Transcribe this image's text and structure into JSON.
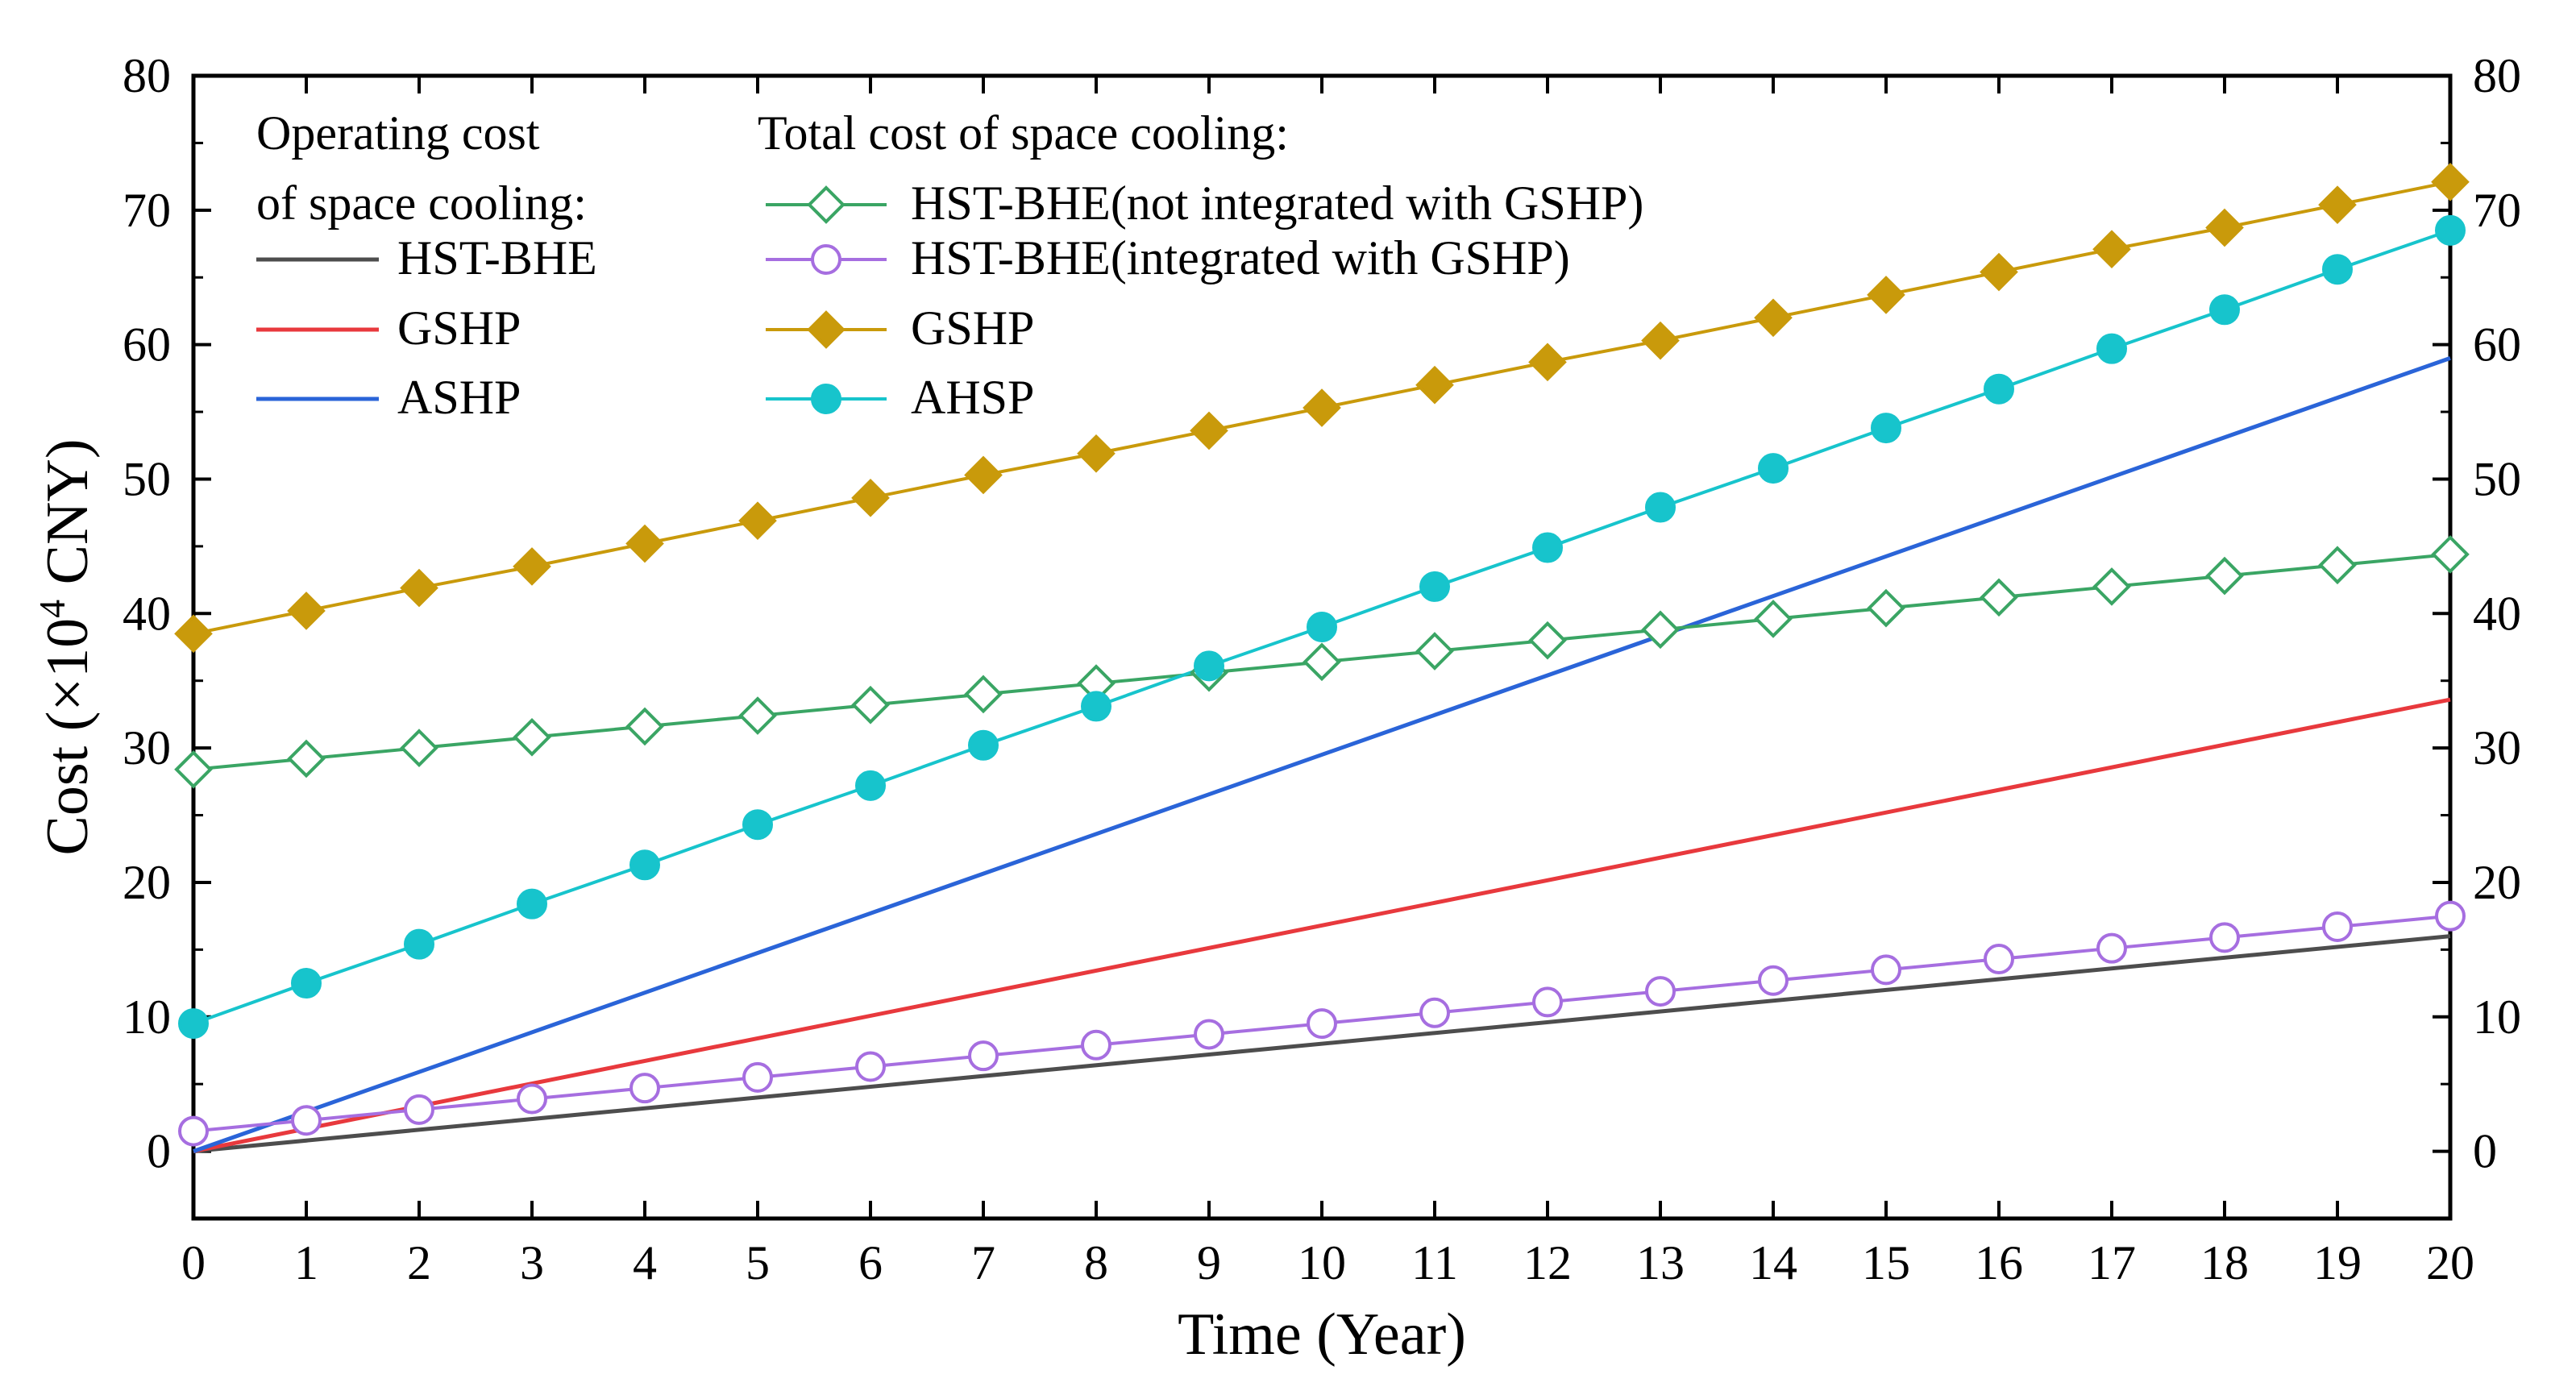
{
  "chart_data": {
    "type": "line",
    "xlabel": "Time (Year)",
    "ylabel_prefix": "Cost (×10",
    "ylabel_exp": "4",
    "ylabel_suffix": " CNY)",
    "xlim": [
      0,
      20
    ],
    "ylim": [
      -5,
      80
    ],
    "xticks": [
      0,
      1,
      2,
      3,
      4,
      5,
      6,
      7,
      8,
      9,
      10,
      11,
      12,
      13,
      14,
      15,
      16,
      17,
      18,
      19,
      20
    ],
    "yticks": [
      0,
      10,
      20,
      30,
      40,
      50,
      60,
      70,
      80
    ],
    "legend": {
      "left_title_line1": "Operating cost",
      "left_title_line2": "of space cooling:",
      "right_title": "Total cost of space cooling:"
    },
    "operating_series": [
      {
        "name": "HST-BHE",
        "color": "#4d4d4d",
        "x": [
          0,
          20
        ],
        "values": [
          0,
          16
        ]
      },
      {
        "name": "GSHP",
        "color": "#e8393d",
        "x": [
          0,
          20
        ],
        "values": [
          0,
          33.6
        ]
      },
      {
        "name": "ASHP",
        "color": "#2a64d8",
        "x": [
          0,
          20
        ],
        "values": [
          0,
          59
        ]
      }
    ],
    "total_series": [
      {
        "name": "HST-BHE(not integrated with GSHP)",
        "color": "#3aa564",
        "marker": "diamond",
        "filled": false,
        "values": [
          28.4,
          29.2,
          30.0,
          30.8,
          31.6,
          32.4,
          33.2,
          34.0,
          34.8,
          35.6,
          36.4,
          37.2,
          38.0,
          38.8,
          39.6,
          40.4,
          41.2,
          42.0,
          42.8,
          43.6,
          44.4
        ]
      },
      {
        "name": "HST-BHE(integrated with GSHP)",
        "color": "#a66ee0",
        "marker": "circle",
        "filled": false,
        "values": [
          1.5,
          2.3,
          3.1,
          3.9,
          4.7,
          5.5,
          6.3,
          7.1,
          7.9,
          8.7,
          9.5,
          10.3,
          11.1,
          11.9,
          12.7,
          13.5,
          14.3,
          15.1,
          15.9,
          16.7,
          17.5
        ]
      },
      {
        "name": "GSHP",
        "color": "#c99a0b",
        "marker": "diamond",
        "filled": true,
        "values": [
          38.5,
          40.2,
          41.9,
          43.5,
          45.2,
          46.9,
          48.6,
          50.3,
          51.9,
          53.6,
          55.3,
          57.0,
          58.7,
          60.3,
          62.0,
          63.7,
          65.4,
          67.1,
          68.7,
          70.4,
          72.1
        ]
      },
      {
        "name": "AHSP",
        "color": "#17c4cc",
        "marker": "circle",
        "filled": true,
        "values": [
          9.5,
          12.5,
          15.4,
          18.4,
          21.3,
          24.3,
          27.2,
          30.2,
          33.1,
          36.1,
          39.0,
          42.0,
          44.9,
          47.9,
          50.8,
          53.8,
          56.7,
          59.7,
          62.6,
          65.6,
          68.5
        ]
      }
    ]
  }
}
